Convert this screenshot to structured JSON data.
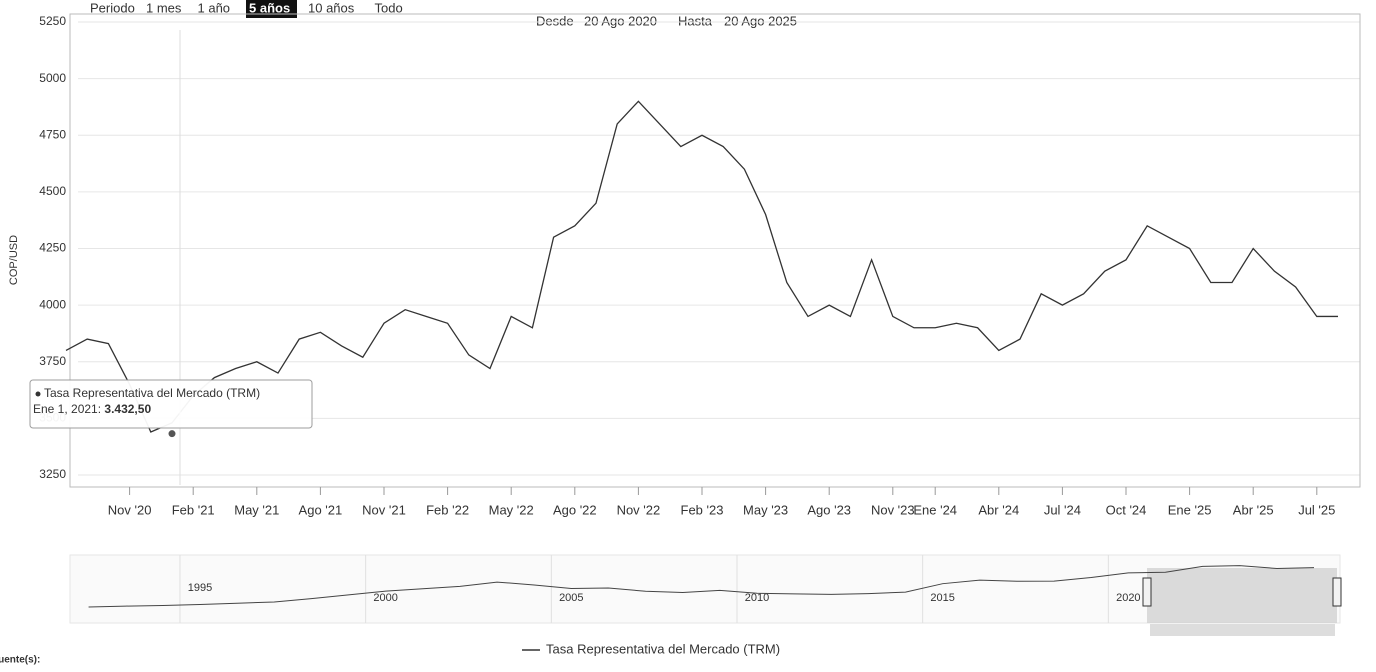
{
  "chart_data": {
    "type": "line",
    "range_selector": {
      "label": "Periodo",
      "buttons": [
        "1 mes",
        "1 año",
        "5 años",
        "10 años",
        "Todo"
      ],
      "active": 2
    },
    "date_range": {
      "from_label": "Desde",
      "from": "20 Ago 2020",
      "to_label": "Hasta",
      "to": "20 Ago 2025"
    },
    "ylabel": "COP/USD",
    "ylim": [
      3250,
      5250
    ],
    "yticks": [
      3250,
      3500,
      3750,
      4000,
      4250,
      4500,
      4750,
      5000,
      5250
    ],
    "grid": true,
    "categories": [
      null,
      null,
      null,
      "Nov '20",
      null,
      null,
      "Feb '21",
      null,
      null,
      "May '21",
      null,
      null,
      "Ago '21",
      null,
      null,
      "Nov '21",
      null,
      null,
      "Feb '22",
      null,
      null,
      "May '22",
      null,
      null,
      "Ago '22",
      null,
      null,
      "Nov '22",
      null,
      null,
      "Feb '23",
      null,
      null,
      "May '23",
      null,
      null,
      "Ago '23",
      null,
      null,
      "Nov '23",
      null,
      "Ene '24",
      null,
      null,
      "Abr '24",
      null,
      null,
      "Jul '24",
      null,
      null,
      "Oct '24",
      null,
      null,
      "Ene '25",
      null,
      null,
      "Abr '25",
      null,
      null,
      "Jul '25",
      null
    ],
    "series": [
      {
        "name": "Tasa Representativa del Mercado (TRM)",
        "color": "#333333",
        "values": [
          3800,
          3850,
          3830,
          3650,
          3440,
          3480,
          3600,
          3680,
          3720,
          3750,
          3700,
          3850,
          3880,
          3820,
          3770,
          3920,
          3980,
          3950,
          3920,
          3780,
          3720,
          3950,
          3900,
          4300,
          4350,
          4450,
          4800,
          4900,
          4800,
          4700,
          4750,
          4700,
          4600,
          4400,
          4100,
          3950,
          4000,
          3950,
          4200,
          3950,
          3900,
          3900,
          3920,
          3900,
          3800,
          3850,
          4050,
          4000,
          4050,
          4150,
          4200,
          4350,
          4300,
          4250,
          4100,
          4100,
          4250,
          4150,
          4080,
          3950,
          3950
        ]
      }
    ],
    "tooltip": {
      "date": "Ene 1, 2021",
      "value": 3432.5,
      "value_label": "3.432,50"
    },
    "navigator": {
      "x": [
        1992,
        1993,
        1994,
        1995,
        1996,
        1997,
        1998,
        1999,
        2000,
        2001,
        2002,
        2003,
        2004,
        2005,
        2006,
        2007,
        2008,
        2009,
        2010,
        2011,
        2012,
        2013,
        2014,
        2015,
        2016,
        2017,
        2018,
        2019,
        2020,
        2021,
        2022,
        2023,
        2024,
        2025
      ],
      "values": [
        700,
        780,
        830,
        920,
        1030,
        1140,
        1430,
        1760,
        2090,
        2300,
        2500,
        2880,
        2630,
        2320,
        2360,
        2080,
        1970,
        2150,
        1900,
        1850,
        1800,
        1870,
        2000,
        2740,
        3050,
        2950,
        2960,
        3280,
        3690,
        3740,
        4250,
        4320,
        4070,
        4150
      ],
      "xlim": [
        1991.5,
        2025.7
      ],
      "xticks": [
        1995,
        2000,
        2005,
        2010,
        2015,
        2020
      ],
      "ylim": [
        0,
        5250
      ]
    },
    "source_label": "Fuente(s):"
  }
}
